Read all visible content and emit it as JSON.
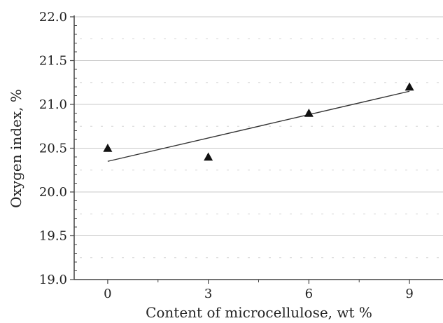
{
  "chart_data": {
    "type": "scatter",
    "title": "",
    "xlabel": "Content of microcellulose, wt %",
    "ylabel": "Oxygen index, %",
    "xlim": [
      -1.0,
      10.0
    ],
    "ylim": [
      19.0,
      22.0
    ],
    "x_ticks": [
      0,
      3,
      6,
      9
    ],
    "x_tick_labels": [
      "0",
      "3",
      "6",
      "9"
    ],
    "y_ticks": [
      19.0,
      19.5,
      20.0,
      20.5,
      21.0,
      21.5,
      22.0
    ],
    "y_tick_labels": [
      "19.0",
      "19.5",
      "20.0",
      "20.5",
      "21.0",
      "21.5",
      "22.0"
    ],
    "grid": "horizontal",
    "legend": "none",
    "series": [
      {
        "marker": "triangle",
        "x": [
          0,
          3,
          6,
          9
        ],
        "y": [
          20.5,
          20.4,
          20.9,
          21.2
        ]
      }
    ],
    "trendline": {
      "type": "linear",
      "x": [
        0,
        9
      ],
      "y": [
        20.35,
        21.15
      ]
    },
    "colors": {
      "marker": "#111111",
      "trendline": "#333333",
      "grid": "#c8c8c8",
      "grid_minor": "#d6d6d6",
      "axis": "#444444"
    }
  }
}
